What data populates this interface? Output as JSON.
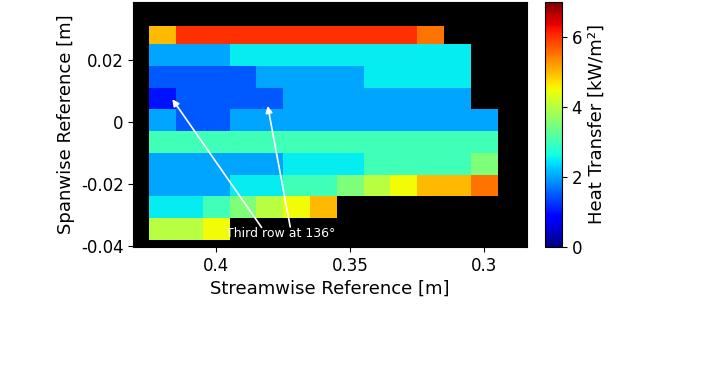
{
  "chart_data": {
    "type": "heatmap",
    "xlabel": "Streamwise Reference [m]",
    "ylabel": "Spanwise Reference [m]",
    "xlim": [
      0.431,
      0.284
    ],
    "ylim": [
      -0.0403,
      0.0386
    ],
    "xticks": [
      0.4,
      0.35,
      0.3
    ],
    "yticks": [
      -0.04,
      -0.02,
      0,
      0.02
    ],
    "x_edges": [
      0.425,
      0.415,
      0.405,
      0.395,
      0.385,
      0.375,
      0.365,
      0.355,
      0.345,
      0.335,
      0.325,
      0.315,
      0.305,
      0.295
    ],
    "y_edges": [
      -0.038,
      -0.031,
      -0.024,
      -0.017,
      -0.01,
      -0.003,
      0.004,
      0.011,
      0.018,
      0.025,
      0.031
    ],
    "cells": [
      [
        4,
        4,
        4.5,
        null,
        null,
        null,
        null,
        null,
        null,
        null,
        null,
        null,
        null
      ],
      [
        2.5,
        2.5,
        3,
        3.5,
        4,
        4.5,
        5,
        null,
        null,
        null,
        null,
        null,
        null
      ],
      [
        2,
        2,
        2,
        2.5,
        2.5,
        3,
        3,
        3.5,
        4,
        4.5,
        5,
        5,
        5.5
      ],
      [
        2,
        2,
        2,
        2,
        2,
        2.5,
        2.5,
        2.5,
        3,
        3,
        3,
        3,
        3.5
      ],
      [
        3,
        3,
        3,
        3,
        3,
        3,
        3,
        3,
        3,
        3,
        3,
        3,
        3
      ],
      [
        2,
        1.5,
        1.5,
        2,
        2,
        2,
        2,
        2,
        2,
        2,
        2,
        2,
        2
      ],
      [
        1,
        1.5,
        1.5,
        1.5,
        1.5,
        2,
        2,
        2,
        2,
        2,
        2,
        2,
        null
      ],
      [
        1.5,
        1.5,
        1.5,
        1.5,
        2,
        2,
        2,
        2,
        2.5,
        2.5,
        2.5,
        2.5,
        null
      ],
      [
        2,
        2,
        2,
        2.5,
        2.5,
        2.5,
        2.5,
        2.5,
        2.5,
        2.5,
        2.5,
        2.5,
        null
      ],
      [
        5,
        6,
        6,
        6,
        6,
        6,
        6,
        6,
        6,
        6,
        5.5,
        null,
        null
      ]
    ],
    "colorbar_label": "Heat Transfer [kW/m²]",
    "colorbar_lim": [
      0,
      7
    ],
    "colorbar_ticks": [
      0,
      2,
      4,
      6
    ],
    "annotation": {
      "text": "Third row at 136°",
      "targets": [
        [
          0.417,
          0.008
        ],
        [
          0.381,
          0.006
        ]
      ]
    }
  }
}
